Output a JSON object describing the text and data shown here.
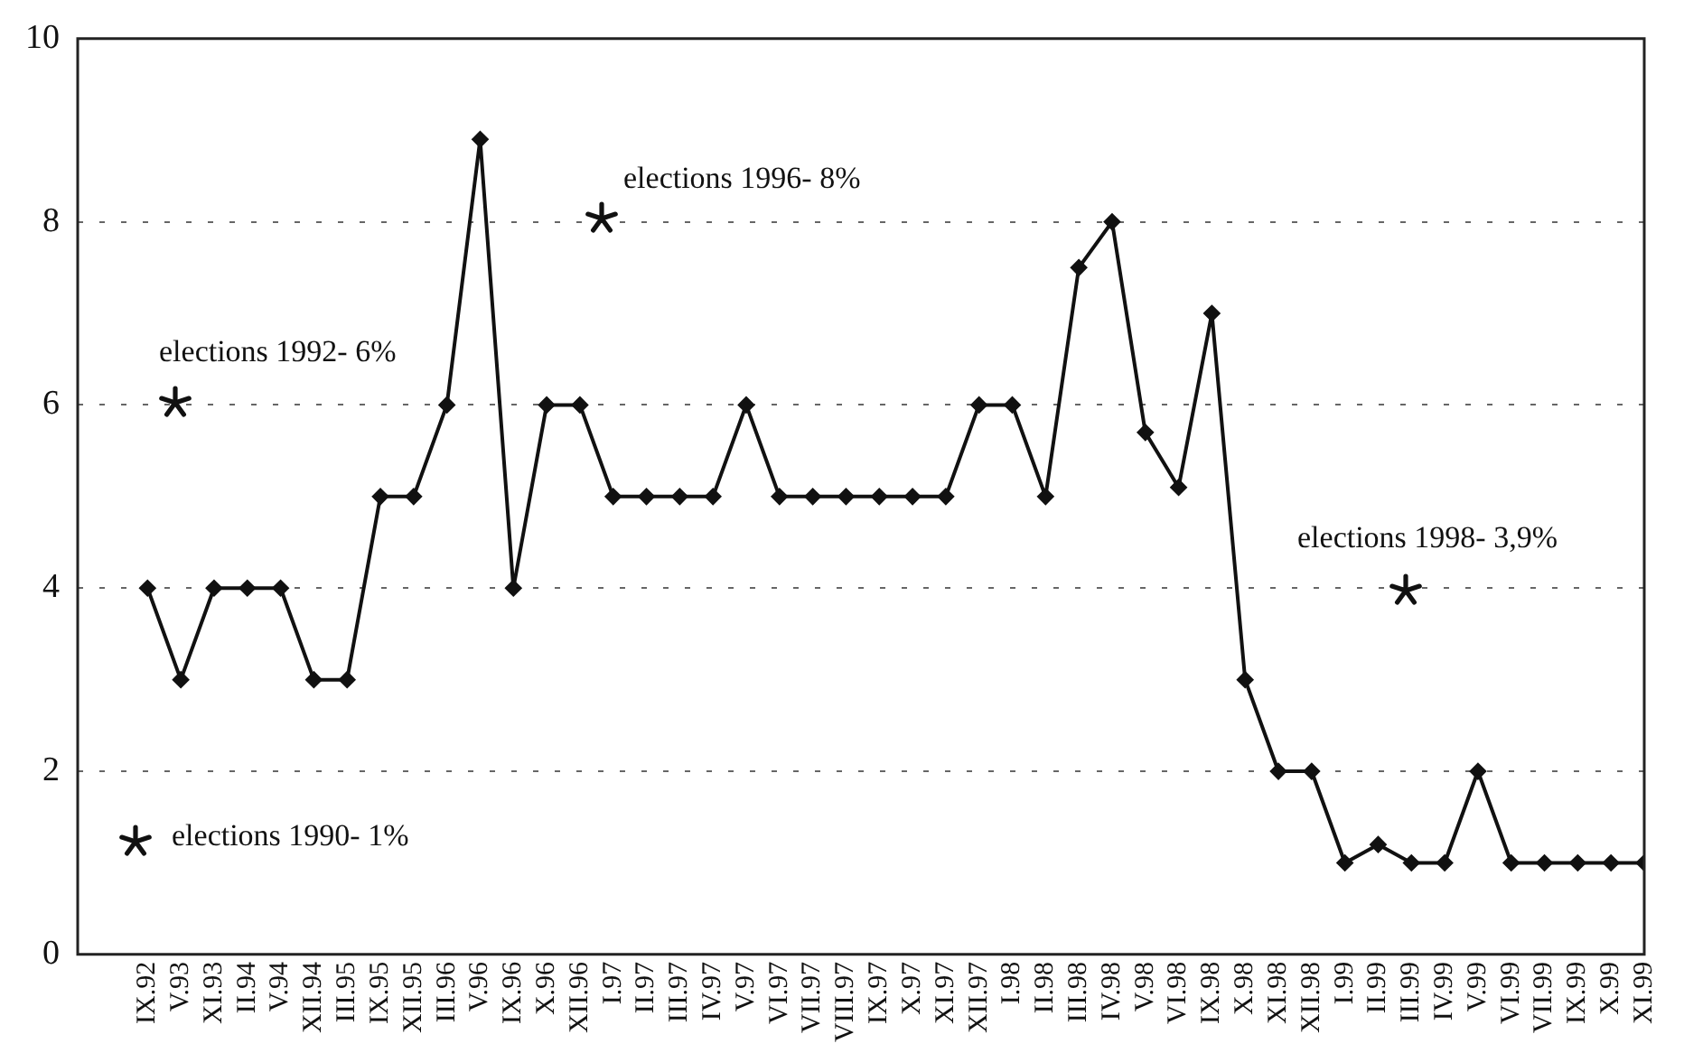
{
  "chart_data": {
    "type": "line",
    "categories": [
      "IX.92",
      "V.93",
      "XI.93",
      "II.94",
      "V.94",
      "XII.94",
      "III.95",
      "IX.95",
      "XII.95",
      "III.96",
      "V.96",
      "IX.96",
      "X.96",
      "XII.96",
      "I.97",
      "II.97",
      "III.97",
      "IV.97",
      "V.97",
      "VI.97",
      "VII.97",
      "VIII.97",
      "IX.97",
      "X.97",
      "XI.97",
      "XII.97",
      "I.98",
      "II.98",
      "III.98",
      "IV.98",
      "V.98",
      "VI.98",
      "IX.98",
      "X.98",
      "XI.98",
      "XII.98",
      "I.99",
      "II.99",
      "III.99",
      "IV.99",
      "V.99",
      "VI.99",
      "VII.99",
      "IX.99",
      "X.99",
      "XI.99"
    ],
    "series": [
      {
        "color": "#111111",
        "values": [
          4,
          3,
          4,
          4,
          4,
          3,
          3,
          5,
          5,
          6,
          8.9,
          4,
          6,
          6,
          5,
          5,
          5,
          5,
          6,
          5,
          5,
          5,
          5,
          5,
          5,
          6,
          6,
          5,
          7.5,
          8,
          5.7,
          5.1,
          7,
          3,
          2,
          2,
          1,
          1.2,
          1,
          1,
          2,
          1,
          1,
          1,
          1,
          1
        ]
      }
    ],
    "ylim": [
      0,
      10
    ],
    "yticks": [
      0,
      2,
      4,
      6,
      8,
      10
    ],
    "grid": "y",
    "legend": false,
    "marker": "diamond",
    "line_style": "solid",
    "annotations": [
      "elections 1990- 1%",
      "elections 1992- 6%",
      "elections 1996- 8%",
      "elections 1998- 3,9%"
    ]
  }
}
